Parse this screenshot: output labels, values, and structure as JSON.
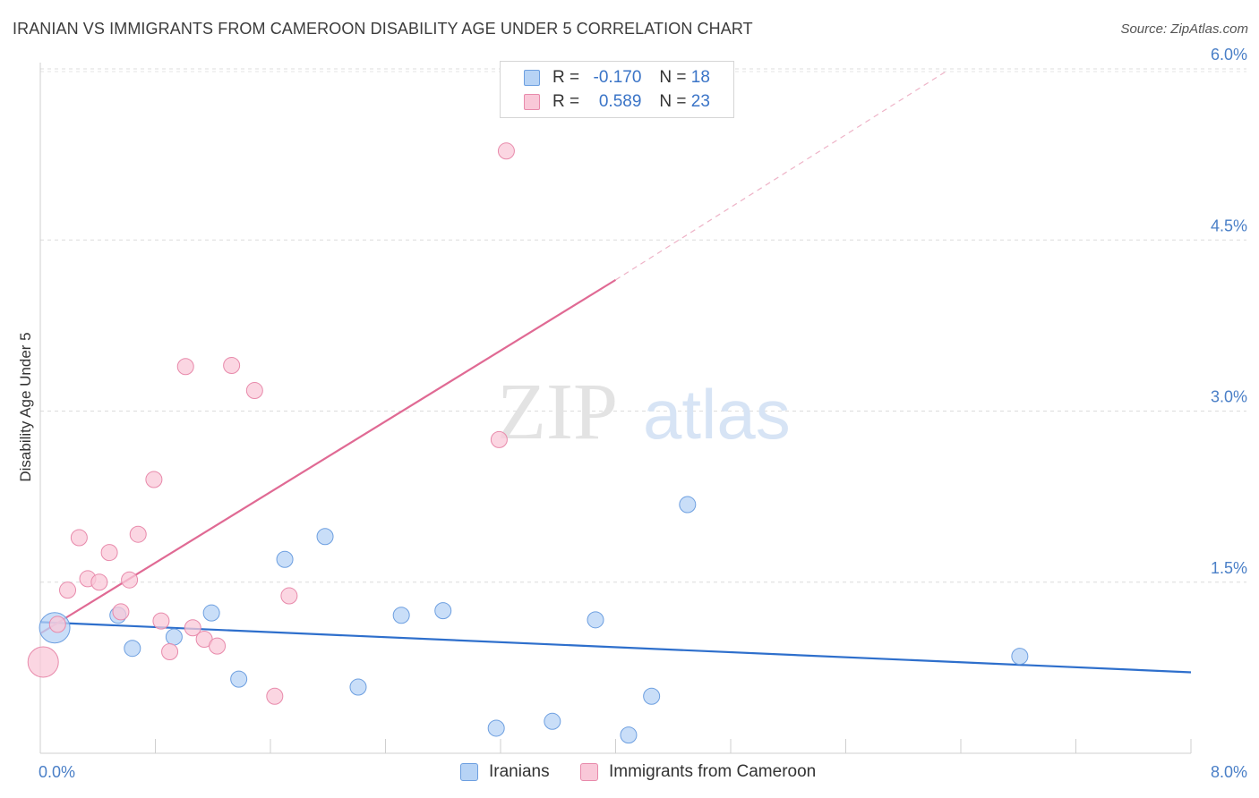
{
  "header": {
    "title": "IRANIAN VS IMMIGRANTS FROM CAMEROON DISABILITY AGE UNDER 5 CORRELATION CHART",
    "source": "Source: ZipAtlas.com"
  },
  "watermark": {
    "zip": "ZIP",
    "atlas": "atlas"
  },
  "legend": {
    "rows": [
      {
        "r_label": "R =",
        "r_value": "-0.170",
        "n_label": "N =",
        "n_value": "18",
        "color": "#b7d3f5",
        "border": "#6d9fe0"
      },
      {
        "r_label": "R =",
        "r_value": "0.589",
        "n_label": "N =",
        "n_value": "23",
        "color": "#f9c8d8",
        "border": "#e88aab"
      }
    ]
  },
  "bottom_legend": [
    {
      "label": "Iranians",
      "color": "#b7d3f5",
      "border": "#6d9fe0"
    },
    {
      "label": "Immigrants from Cameroon",
      "color": "#f9c8d8",
      "border": "#e88aab"
    }
  ],
  "chart_data": {
    "type": "scatter",
    "title": "IRANIAN VS IMMIGRANTS FROM CAMEROON DISABILITY AGE UNDER 5 CORRELATION CHART",
    "xlabel": "",
    "ylabel": "Disability Age Under 5",
    "xlim": [
      0,
      8
    ],
    "ylim": [
      0,
      6.2
    ],
    "x_tick_labels": [
      {
        "value": 0,
        "label": "0.0%"
      },
      {
        "value": 8,
        "label": "8.0%"
      }
    ],
    "y_tick_labels": [
      {
        "value": 1.5,
        "label": "1.5%"
      },
      {
        "value": 3.0,
        "label": "3.0%"
      },
      {
        "value": 4.5,
        "label": "4.5%"
      },
      {
        "value": 6.0,
        "label": "6.0%"
      }
    ],
    "grid": true,
    "series": [
      {
        "name": "Iranians",
        "color": "#b7d3f5",
        "stroke": "#6d9fe0",
        "trend_color": "#2e6fcc",
        "points": [
          {
            "x": 0.1,
            "y": 1.1,
            "big": true
          },
          {
            "x": 0.54,
            "y": 1.21
          },
          {
            "x": 0.64,
            "y": 0.92
          },
          {
            "x": 0.93,
            "y": 1.02
          },
          {
            "x": 1.19,
            "y": 1.23
          },
          {
            "x": 1.38,
            "y": 0.65
          },
          {
            "x": 1.7,
            "y": 1.7
          },
          {
            "x": 1.98,
            "y": 1.9
          },
          {
            "x": 2.21,
            "y": 0.58
          },
          {
            "x": 2.51,
            "y": 1.21
          },
          {
            "x": 2.8,
            "y": 1.25
          },
          {
            "x": 3.17,
            "y": 0.22
          },
          {
            "x": 3.56,
            "y": 0.28
          },
          {
            "x": 3.86,
            "y": 1.17
          },
          {
            "x": 4.09,
            "y": 0.16
          },
          {
            "x": 4.25,
            "y": 0.5
          },
          {
            "x": 4.5,
            "y": 2.18
          },
          {
            "x": 6.81,
            "y": 0.85
          }
        ],
        "trend": {
          "x0": 0.0,
          "y0": 1.15,
          "x1": 8.0,
          "y1": 0.71
        }
      },
      {
        "name": "Immigrants from Cameroon",
        "color": "#f9c8d8",
        "stroke": "#e88aab",
        "trend_color": "#e06a94",
        "points": [
          {
            "x": 0.02,
            "y": 0.8,
            "big": true
          },
          {
            "x": 0.12,
            "y": 1.13
          },
          {
            "x": 0.19,
            "y": 1.43
          },
          {
            "x": 0.27,
            "y": 1.89
          },
          {
            "x": 0.33,
            "y": 1.53
          },
          {
            "x": 0.41,
            "y": 1.5
          },
          {
            "x": 0.48,
            "y": 1.76
          },
          {
            "x": 0.56,
            "y": 1.24
          },
          {
            "x": 0.62,
            "y": 1.52
          },
          {
            "x": 0.68,
            "y": 1.92
          },
          {
            "x": 0.79,
            "y": 2.4
          },
          {
            "x": 0.84,
            "y": 1.16
          },
          {
            "x": 0.9,
            "y": 0.89
          },
          {
            "x": 1.01,
            "y": 3.39
          },
          {
            "x": 1.06,
            "y": 1.1
          },
          {
            "x": 1.14,
            "y": 1.0
          },
          {
            "x": 1.23,
            "y": 0.94
          },
          {
            "x": 1.33,
            "y": 3.4
          },
          {
            "x": 1.49,
            "y": 3.18
          },
          {
            "x": 1.63,
            "y": 0.5
          },
          {
            "x": 1.73,
            "y": 1.38
          },
          {
            "x": 3.19,
            "y": 2.75
          },
          {
            "x": 3.24,
            "y": 5.28
          }
        ],
        "trend": {
          "x0": 0.0,
          "y0": 1.05,
          "x1": 4.0,
          "y1": 4.15
        },
        "trend_dashed": {
          "x0": 4.0,
          "y0": 4.15,
          "x1": 6.3,
          "y1": 5.98
        }
      }
    ]
  }
}
